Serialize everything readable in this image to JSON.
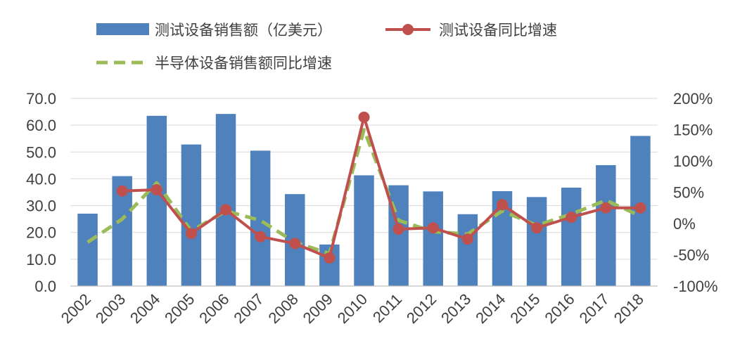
{
  "chart_data": {
    "type": "bar+line",
    "categories": [
      "2002",
      "2003",
      "2004",
      "2005",
      "2006",
      "2007",
      "2008",
      "2009",
      "2010",
      "2011",
      "2012",
      "2013",
      "2014",
      "2015",
      "2016",
      "2017",
      "2018"
    ],
    "series": [
      {
        "name": "测试设备销售额（亿美元）",
        "type": "bar",
        "axis": "left",
        "color": "#4f81bd",
        "values": [
          27.0,
          41.0,
          63.5,
          52.8,
          64.2,
          50.5,
          34.3,
          15.5,
          41.3,
          37.6,
          35.3,
          26.8,
          35.4,
          33.2,
          36.7,
          45.1,
          56.0
        ]
      },
      {
        "name": "测试设备同比增速",
        "type": "line",
        "axis": "right",
        "color": "#c0504d",
        "marker": "circle",
        "values": [
          null,
          52,
          54,
          -16,
          22,
          -21,
          -32,
          -55,
          170,
          -9,
          -7,
          -25,
          30,
          -7,
          10,
          25,
          25
        ]
      },
      {
        "name": "半导体设备销售额同比增速",
        "type": "line",
        "axis": "right",
        "color": "#9bbb59",
        "style": "dashed",
        "values": [
          -30,
          7,
          65,
          -12,
          20,
          5,
          -30,
          -48,
          150,
          5,
          -13,
          -17,
          20,
          -3,
          15,
          37,
          12
        ]
      }
    ],
    "y_left": {
      "ylim": [
        0,
        70
      ],
      "ticks": [
        "0.0",
        "10.0",
        "20.0",
        "30.0",
        "40.0",
        "50.0",
        "60.0",
        "70.0"
      ]
    },
    "y_right": {
      "ylim": [
        -100,
        200
      ],
      "ticks": [
        "-100%",
        "-50%",
        "0%",
        "50%",
        "100%",
        "150%",
        "200%"
      ]
    },
    "grid": true,
    "legend": "top-left"
  }
}
